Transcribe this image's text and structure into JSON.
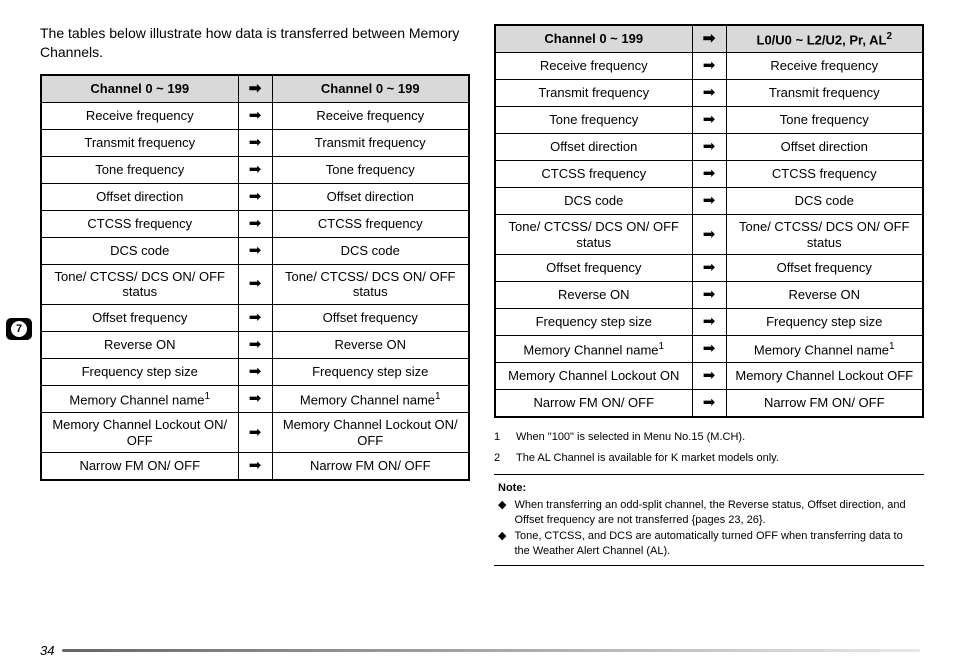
{
  "intro": "The tables below illustrate how data is transferred between Memory Channels.",
  "arrow_glyph": "➡",
  "side_badge": "7",
  "page_number": "34",
  "table_left": {
    "head_left": "Channel 0 ~ 199",
    "head_right": "Channel 0 ~ 199",
    "rows": [
      {
        "l": "Receive frequency",
        "r": "Receive frequency"
      },
      {
        "l": "Transmit frequency",
        "r": "Transmit frequency"
      },
      {
        "l": "Tone frequency",
        "r": "Tone frequency"
      },
      {
        "l": "Offset direction",
        "r": "Offset direction"
      },
      {
        "l": "CTCSS frequency",
        "r": "CTCSS frequency"
      },
      {
        "l": "DCS code",
        "r": "DCS code"
      },
      {
        "l": "Tone/ CTCSS/ DCS ON/ OFF status",
        "r": "Tone/ CTCSS/ DCS ON/ OFF status"
      },
      {
        "l": "Offset frequency",
        "r": "Offset frequency"
      },
      {
        "l": "Reverse ON",
        "r": "Reverse ON"
      },
      {
        "l": "Frequency step size",
        "r": "Frequency step size"
      },
      {
        "l": "Memory Channel name",
        "l_sup": "1",
        "r": "Memory Channel name",
        "r_sup": "1"
      },
      {
        "l": "Memory Channel Lockout ON/ OFF",
        "r": "Memory Channel Lockout ON/ OFF"
      },
      {
        "l": "Narrow FM ON/ OFF",
        "r": "Narrow FM ON/ OFF"
      }
    ]
  },
  "table_right": {
    "head_left": "Channel 0 ~ 199",
    "head_right": "L0/U0 ~ L2/U2, Pr, AL",
    "head_right_sup": "2",
    "rows": [
      {
        "l": "Receive frequency",
        "r": "Receive frequency"
      },
      {
        "l": "Transmit frequency",
        "r": "Transmit frequency"
      },
      {
        "l": "Tone frequency",
        "r": "Tone frequency"
      },
      {
        "l": "Offset direction",
        "r": "Offset direction"
      },
      {
        "l": "CTCSS frequency",
        "r": "CTCSS frequency"
      },
      {
        "l": "DCS code",
        "r": "DCS code"
      },
      {
        "l": "Tone/ CTCSS/ DCS ON/ OFF status",
        "r": "Tone/ CTCSS/ DCS ON/ OFF status"
      },
      {
        "l": "Offset frequency",
        "r": "Offset frequency"
      },
      {
        "l": "Reverse ON",
        "r": "Reverse ON"
      },
      {
        "l": "Frequency step size",
        "r": "Frequency step size"
      },
      {
        "l": "Memory Channel name",
        "l_sup": "1",
        "r": "Memory Channel name",
        "r_sup": "1"
      },
      {
        "l": "Memory Channel Lockout ON",
        "r": "Memory Channel Lockout OFF"
      },
      {
        "l": "Narrow FM ON/ OFF",
        "r": "Narrow FM ON/ OFF"
      }
    ]
  },
  "footnotes": [
    {
      "num": "1",
      "text": "When \"100\" is selected in Menu No.15 (M.CH)."
    },
    {
      "num": "2",
      "text": "The AL Channel is available for K market models only."
    }
  ],
  "note": {
    "title": "Note:",
    "items": [
      "When transferring an odd-split channel, the Reverse status, Offset direction, and Offset frequency are not transferred {pages 23, 26}.",
      "Tone, CTCSS, and DCS are automatically turned OFF when transferring data to the Weather Alert Channel (AL)."
    ]
  }
}
